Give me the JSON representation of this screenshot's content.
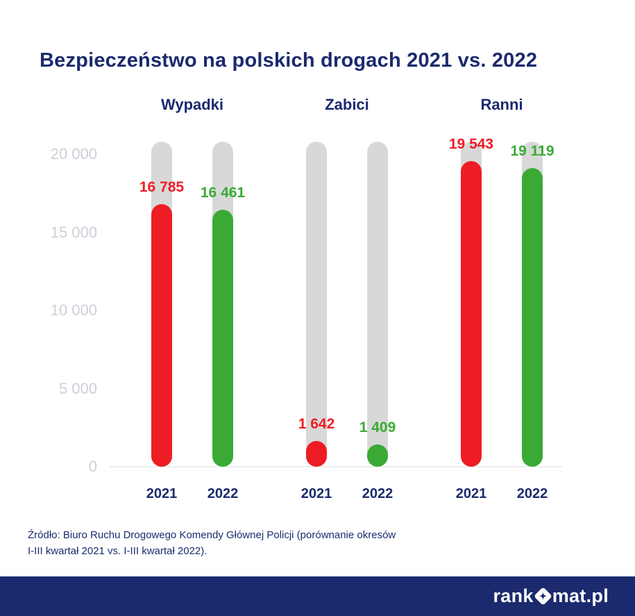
{
  "title": "Bezpieczeństwo na polskich drogach 2021 vs. 2022",
  "colors": {
    "navy": "#1b2a6e",
    "red": "#ee1c25",
    "green": "#3aaa35",
    "track_gray": "#d8d8d8",
    "tick_gray": "#ccd0d8"
  },
  "chart_data": {
    "type": "bar",
    "title": "Bezpieczeństwo na polskich drogach 2021 vs. 2022",
    "axis_max": 20000,
    "track_max": 20800,
    "grid": false,
    "yticks": [
      {
        "label": "20 000",
        "value": 20000
      },
      {
        "label": "15 000",
        "value": 15000
      },
      {
        "label": "10 000",
        "value": 10000
      },
      {
        "label": "5 000",
        "value": 5000
      },
      {
        "label": "0",
        "value": 0
      }
    ],
    "groups": [
      {
        "label": "Wypadki",
        "bars": [
          {
            "category": "2021",
            "value": 16785,
            "display": "16 785",
            "color": "#ee1c25"
          },
          {
            "category": "2022",
            "value": 16461,
            "display": "16 461",
            "color": "#3aaa35"
          }
        ]
      },
      {
        "label": "Zabici",
        "bars": [
          {
            "category": "2021",
            "value": 1642,
            "display": "1 642",
            "color": "#ee1c25"
          },
          {
            "category": "2022",
            "value": 1409,
            "display": "1 409",
            "color": "#3aaa35"
          }
        ]
      },
      {
        "label": "Ranni",
        "bars": [
          {
            "category": "2021",
            "value": 19543,
            "display": "19 543",
            "color": "#ee1c25"
          },
          {
            "category": "2022",
            "value": 19119,
            "display": "19 119",
            "color": "#3aaa35"
          }
        ]
      }
    ]
  },
  "source": {
    "line1": "Źródło: Biuro Ruchu Drogowego Komendy Głównej Policji (porównanie okresów",
    "line2": "I-III kwartał 2021 vs. I-III kwartał 2022)."
  },
  "footer": {
    "logo_prefix": "rank",
    "logo_suffix": "mat.pl"
  }
}
